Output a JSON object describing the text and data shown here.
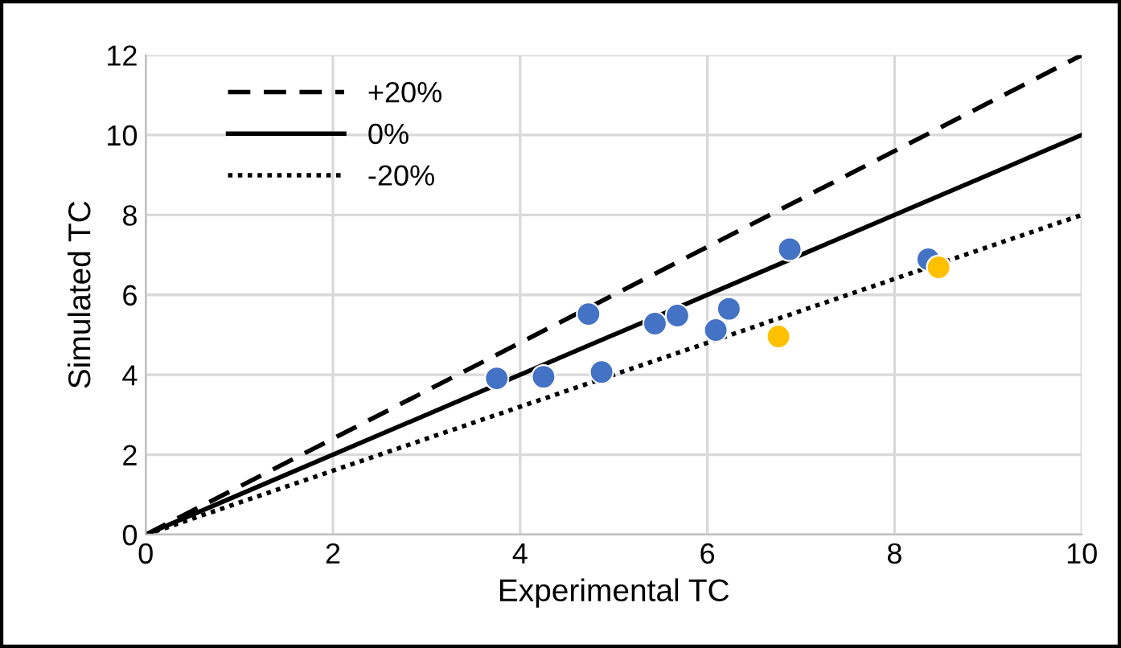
{
  "chart_data": {
    "type": "scatter",
    "xlabel": "Experimental TC",
    "ylabel": "Simulated TC",
    "xlim": [
      0,
      10
    ],
    "ylim": [
      0,
      12
    ],
    "xticks": [
      0,
      2,
      4,
      6,
      8,
      10
    ],
    "yticks": [
      0,
      2,
      4,
      6,
      8,
      10,
      12
    ],
    "grid": true,
    "legend": "top left",
    "series": [
      {
        "name": "+20%",
        "type": "line",
        "marker": "none",
        "line_style": "dashed",
        "color": "#000000",
        "x": [
          0,
          10
        ],
        "values": [
          0,
          12
        ]
      },
      {
        "name": "0%",
        "type": "line",
        "marker": "none",
        "line_style": "solid",
        "color": "#000000",
        "x": [
          0,
          10
        ],
        "values": [
          0,
          10
        ]
      },
      {
        "name": "-20%",
        "type": "line",
        "marker": "none",
        "line_style": "dotted",
        "color": "#000000",
        "x": [
          0,
          10
        ],
        "values": [
          0,
          8
        ]
      },
      {
        "marker": "circle",
        "color": "#4472c4",
        "x": [
          3.75,
          4.25,
          4.73,
          4.87,
          5.44,
          5.68,
          6.09,
          6.23,
          6.88,
          8.36
        ],
        "values": [
          3.91,
          3.95,
          5.52,
          4.07,
          5.28,
          5.48,
          5.12,
          5.65,
          7.14,
          6.89
        ]
      },
      {
        "marker": "circle",
        "color": "#ffc000",
        "x": [
          6.76,
          8.47
        ],
        "values": [
          4.96,
          6.69
        ]
      }
    ]
  }
}
